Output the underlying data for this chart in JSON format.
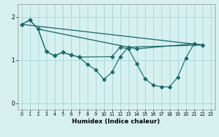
{
  "xlabel": "Humidex (Indice chaleur)",
  "background_color": "#d6f0f0",
  "grid_color": "#a8d8d8",
  "line_color": "#1a6b6b",
  "xlim": [
    -0.5,
    23.5
  ],
  "ylim": [
    -0.15,
    2.3
  ],
  "xticks": [
    0,
    1,
    2,
    3,
    4,
    5,
    6,
    7,
    8,
    9,
    10,
    11,
    12,
    13,
    14,
    15,
    16,
    17,
    18,
    19,
    20,
    21,
    22,
    23
  ],
  "yticks": [
    0,
    1,
    2
  ],
  "series": [
    {
      "x": [
        0,
        1,
        2,
        3,
        4,
        5,
        6,
        7,
        8,
        9,
        10,
        11,
        12,
        13,
        14,
        21,
        22
      ],
      "y": [
        1.83,
        1.93,
        1.72,
        1.2,
        1.1,
        1.18,
        1.12,
        1.07,
        0.9,
        0.78,
        0.55,
        0.72,
        1.08,
        1.3,
        1.26,
        1.38,
        1.35
      ],
      "marker": "D",
      "markersize": 2.5,
      "linewidth": 0.9
    },
    {
      "x": [
        0,
        1,
        2,
        3,
        4,
        5,
        6,
        7,
        11,
        12,
        13,
        14,
        15,
        16,
        17,
        18,
        19,
        20,
        21,
        22
      ],
      "y": [
        1.83,
        1.93,
        1.72,
        1.2,
        1.1,
        1.18,
        1.12,
        1.07,
        1.08,
        1.3,
        1.26,
        0.92,
        0.57,
        0.42,
        0.38,
        0.38,
        0.6,
        1.05,
        1.38,
        1.35
      ],
      "marker": "D",
      "markersize": 2.5,
      "linewidth": 0.9
    },
    {
      "x": [
        0,
        22
      ],
      "y": [
        1.83,
        1.35
      ],
      "marker": null,
      "markersize": 0,
      "linewidth": 1.0
    },
    {
      "x": [
        2,
        13,
        22
      ],
      "y": [
        1.72,
        1.3,
        1.35
      ],
      "marker": null,
      "markersize": 0,
      "linewidth": 1.0
    }
  ]
}
